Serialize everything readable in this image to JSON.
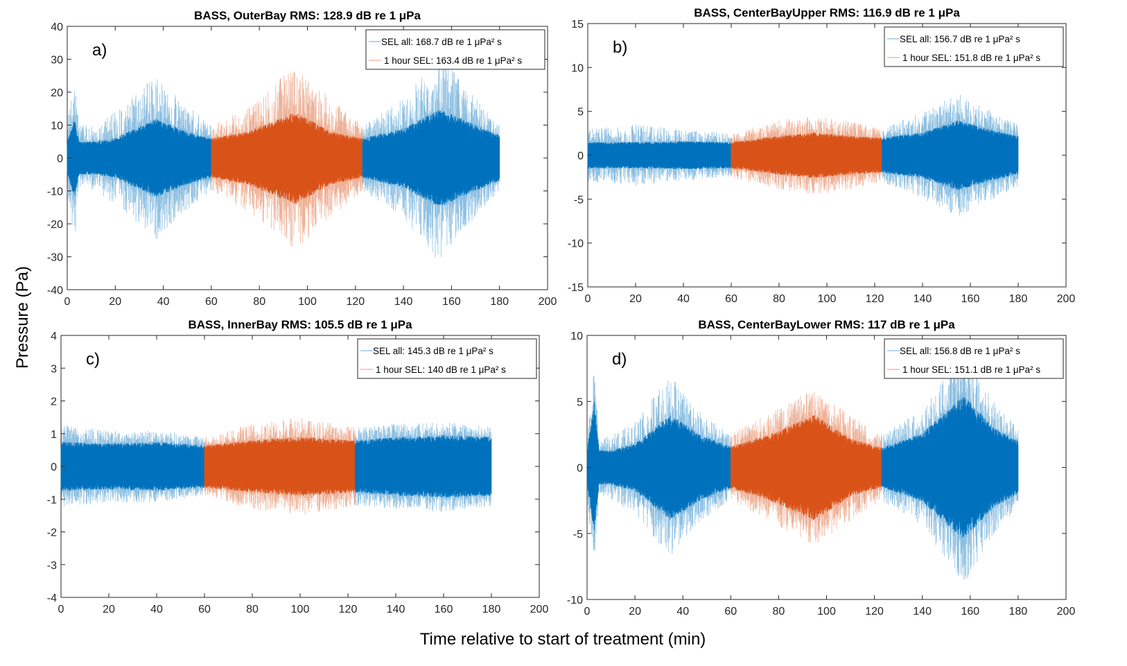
{
  "figure": {
    "ylabel": "Pressure (Pa)",
    "xlabel": "Time relative to start of treatment (min)"
  },
  "colors": {
    "all": "#0072BD",
    "one_hour": "#D95319"
  },
  "chart_data": [
    {
      "type": "line",
      "panel_label": "a)",
      "title": "BASS, OuterBay RMS: 128.9 dB re 1 μPa",
      "xlim": [
        0,
        200
      ],
      "ylim": [
        -40,
        40
      ],
      "xticks": [
        0,
        20,
        40,
        60,
        80,
        100,
        120,
        140,
        160,
        180,
        200
      ],
      "yticks": [
        -40,
        -30,
        -20,
        -10,
        0,
        10,
        20,
        30,
        40
      ],
      "legend": [
        "SEL all: 168.7 dB re 1 μPa² s",
        "1 hour SEL: 163.4 dB re 1 μPa² s"
      ],
      "legend_position": "top-right",
      "segments": [
        {
          "series": "all",
          "x_range": [
            0,
            60
          ]
        },
        {
          "series": "one_hour",
          "x_range": [
            60,
            123
          ]
        },
        {
          "series": "all",
          "x_range": [
            123,
            180
          ]
        }
      ],
      "envelope": {
        "t": [
          0,
          3,
          5,
          10,
          20,
          37,
          50,
          60,
          75,
          95,
          110,
          123,
          140,
          155,
          170,
          180
        ],
        "core": [
          5,
          12,
          5,
          5,
          6,
          12,
          8,
          6,
          8,
          14,
          8,
          6,
          9,
          15,
          10,
          7
        ],
        "peak": [
          10,
          27,
          10,
          10,
          14,
          25,
          16,
          10,
          16,
          28,
          18,
          10,
          18,
          32,
          18,
          10
        ]
      }
    },
    {
      "type": "line",
      "panel_label": "b)",
      "title": "BASS, CenterBayUpper RMS: 116.9 dB re 1 μPa",
      "xlim": [
        0,
        200
      ],
      "ylim": [
        -15,
        15
      ],
      "xticks": [
        0,
        20,
        40,
        60,
        80,
        100,
        120,
        140,
        160,
        180,
        200
      ],
      "yticks": [
        -15,
        -10,
        -5,
        0,
        5,
        10,
        15
      ],
      "legend": [
        "SEL all: 156.7 dB re 1 μPa² s",
        "1 hour SEL: 151.8 dB re 1 μPa² s"
      ],
      "legend_position": "top-right",
      "segments": [
        {
          "series": "all",
          "x_range": [
            0,
            60
          ]
        },
        {
          "series": "one_hour",
          "x_range": [
            60,
            123
          ]
        },
        {
          "series": "all",
          "x_range": [
            123,
            180
          ]
        }
      ],
      "envelope": {
        "t": [
          0,
          20,
          40,
          60,
          80,
          95,
          110,
          123,
          140,
          155,
          170,
          180
        ],
        "core": [
          1.5,
          1.5,
          1.6,
          1.5,
          2.2,
          2.6,
          2.2,
          2,
          2.6,
          4,
          2.8,
          2.2
        ],
        "peak": [
          3,
          3.5,
          3,
          2.5,
          4,
          4.5,
          4,
          3,
          5,
          7,
          5,
          3.5
        ]
      }
    },
    {
      "type": "line",
      "panel_label": "c)",
      "title": "BASS, InnerBay RMS: 105.5 dB re 1 μPa",
      "xlim": [
        0,
        200
      ],
      "ylim": [
        -4,
        4
      ],
      "xticks": [
        0,
        20,
        40,
        60,
        80,
        100,
        120,
        140,
        160,
        180,
        200
      ],
      "yticks": [
        -4,
        -3,
        -2,
        -1,
        0,
        1,
        2,
        3,
        4
      ],
      "legend": [
        "SEL all: 145.3 dB re 1 μPa² s",
        "1 hour SEL: 140 dB re 1 μPa² s"
      ],
      "legend_position": "top-right",
      "segments": [
        {
          "series": "all",
          "x_range": [
            0,
            60
          ]
        },
        {
          "series": "one_hour",
          "x_range": [
            60,
            123
          ]
        },
        {
          "series": "all",
          "x_range": [
            123,
            180
          ]
        }
      ],
      "envelope": {
        "t": [
          0,
          20,
          40,
          60,
          80,
          100,
          123,
          140,
          160,
          180
        ],
        "core": [
          0.75,
          0.7,
          0.75,
          0.65,
          0.8,
          0.9,
          0.8,
          0.9,
          0.95,
          0.9
        ],
        "peak": [
          1.3,
          1.1,
          1.1,
          0.9,
          1.3,
          1.5,
          1.2,
          1.3,
          1.4,
          1.2
        ]
      }
    },
    {
      "type": "line",
      "panel_label": "d)",
      "title": "BASS, CenterBayLower RMS: 117 dB re 1 μPa",
      "xlim": [
        0,
        200
      ],
      "ylim": [
        -10,
        10
      ],
      "xticks": [
        0,
        20,
        40,
        60,
        80,
        100,
        120,
        140,
        160,
        180,
        200
      ],
      "yticks": [
        -10,
        -5,
        0,
        5,
        10
      ],
      "legend": [
        "SEL all: 156.8 dB re 1 μPa² s",
        "1 hour SEL: 151.1 dB re 1 μPa² s"
      ],
      "legend_position": "top-right",
      "segments": [
        {
          "series": "all",
          "x_range": [
            0,
            60
          ]
        },
        {
          "series": "one_hour",
          "x_range": [
            60,
            123
          ]
        },
        {
          "series": "all",
          "x_range": [
            123,
            180
          ]
        }
      ],
      "envelope": {
        "t": [
          0,
          3,
          5,
          10,
          20,
          35,
          48,
          60,
          75,
          95,
          110,
          123,
          140,
          157,
          170,
          180
        ],
        "core": [
          1.3,
          5,
          1.3,
          1.3,
          1.8,
          4,
          2.4,
          1.6,
          2.4,
          4,
          2.2,
          1.5,
          2.6,
          5.5,
          3,
          2
        ],
        "peak": [
          2,
          8,
          2,
          2.5,
          3.5,
          7,
          4,
          2.5,
          4,
          6,
          4,
          2.5,
          4.5,
          9,
          5,
          3
        ]
      }
    }
  ]
}
